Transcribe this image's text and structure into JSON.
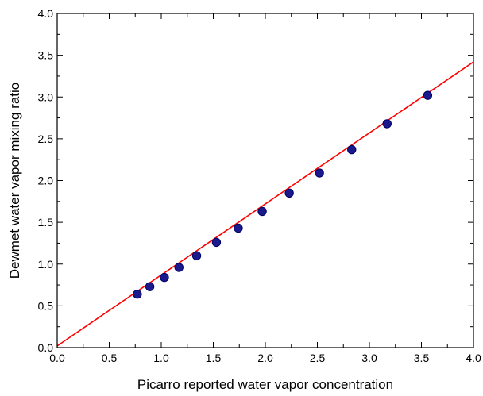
{
  "chart_data": {
    "type": "scatter",
    "title": "",
    "xlabel": "Picarro reported water vapor concentration",
    "ylabel": "Dewmet water vapor mixing ratio",
    "xlim": [
      0.0,
      4.0
    ],
    "ylim": [
      0.0,
      4.0
    ],
    "x_ticks": [
      "0.0",
      "0.5",
      "1.0",
      "1.5",
      "2.0",
      "2.5",
      "3.0",
      "3.5",
      "4.0"
    ],
    "y_ticks": [
      "0.0",
      "0.5",
      "1.0",
      "1.5",
      "2.0",
      "2.5",
      "3.0",
      "3.5",
      "4.0"
    ],
    "grid": false,
    "legend": "none",
    "series": [
      {
        "marker_color": "#1a1a8c",
        "marker_edge_color": "#000066",
        "points": [
          {
            "x": 0.77,
            "y": 0.64
          },
          {
            "x": 0.89,
            "y": 0.73
          },
          {
            "x": 1.03,
            "y": 0.84
          },
          {
            "x": 1.17,
            "y": 0.96
          },
          {
            "x": 1.34,
            "y": 1.1
          },
          {
            "x": 1.53,
            "y": 1.26
          },
          {
            "x": 1.74,
            "y": 1.43
          },
          {
            "x": 1.97,
            "y": 1.63
          },
          {
            "x": 2.23,
            "y": 1.85
          },
          {
            "x": 2.52,
            "y": 2.09
          },
          {
            "x": 2.83,
            "y": 2.37
          },
          {
            "x": 3.17,
            "y": 2.68
          },
          {
            "x": 3.56,
            "y": 3.02
          }
        ]
      }
    ],
    "fit_line": {
      "color": "#ff0000",
      "x_start": 0.0,
      "y_start": 0.02,
      "x_end": 4.0,
      "y_end": 3.42
    }
  }
}
